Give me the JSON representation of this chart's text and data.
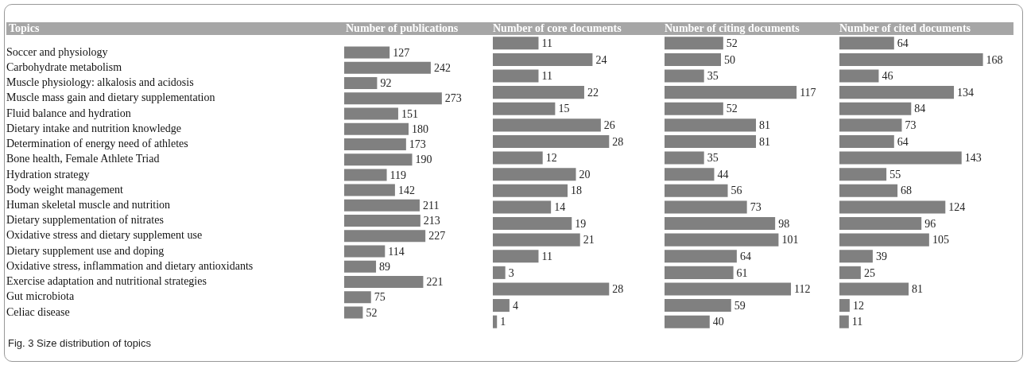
{
  "chart_data": [
    {
      "type": "bar",
      "orientation": "horizontal",
      "title": "Number of publications",
      "ylabel": "Topics",
      "tick_labels": "y",
      "data_labels": true,
      "color": "#808080",
      "categories": [
        "Soccer and physiology",
        "Carbohydrate metabolism",
        "Muscle physiology: alkalosis and acidosis",
        "Muscle mass gain and dietary supplementation",
        "Fluid balance and hydration",
        "Dietary intake and nutrition knowledge",
        "Determination of energy need of athletes",
        "Bone health, Female Athlete Triad",
        "Hydration strategy",
        "Body weight management",
        "Human skeletal muscle and nutrition",
        "Dietary supplementation of nitrates",
        "Oxidative stress and dietary supplement use",
        "Dietary supplement use and doping",
        "Oxidative stress, inflammation and dietary antioxidants",
        "Exercise adaptation and nutritional strategies",
        "Gut microbiota",
        "Celiac disease"
      ],
      "values": [
        127,
        242,
        92,
        273,
        151,
        180,
        173,
        190,
        119,
        142,
        211,
        213,
        227,
        114,
        89,
        221,
        75,
        52
      ],
      "annotations": [
        "Fig. 3 Size distribution of topics"
      ]
    },
    {
      "type": "bar",
      "orientation": "horizontal",
      "title": "Number of core documents",
      "tick_labels": false,
      "data_labels": true,
      "color": "#808080",
      "categories": [
        null,
        null,
        null,
        null,
        null,
        null,
        null,
        null,
        null,
        null,
        null,
        null,
        null,
        null,
        null,
        null,
        null,
        null
      ],
      "values": [
        11,
        24,
        11,
        22,
        15,
        26,
        28,
        12,
        20,
        18,
        14,
        19,
        21,
        11,
        3,
        28,
        4,
        1
      ]
    },
    {
      "type": "bar",
      "orientation": "horizontal",
      "title": "Number of citing documents",
      "tick_labels": false,
      "data_labels": true,
      "color": "#808080",
      "categories": [
        null,
        null,
        null,
        null,
        null,
        null,
        null,
        null,
        null,
        null,
        null,
        null,
        null,
        null,
        null,
        null,
        null,
        null
      ],
      "values": [
        52,
        50,
        35,
        117,
        52,
        81,
        81,
        35,
        44,
        56,
        73,
        98,
        101,
        64,
        61,
        112,
        59,
        40
      ]
    },
    {
      "type": "bar",
      "orientation": "horizontal",
      "title": "Number of cited documents",
      "tick_labels": false,
      "data_labels": true,
      "color": "#808080",
      "categories": [
        null,
        null,
        null,
        null,
        null,
        null,
        null,
        null,
        null,
        null,
        null,
        null,
        null,
        null,
        null,
        null,
        null,
        null
      ],
      "values": [
        64,
        168,
        46,
        134,
        84,
        73,
        64,
        143,
        55,
        68,
        124,
        96,
        105,
        39,
        25,
        81,
        12,
        11
      ]
    }
  ]
}
